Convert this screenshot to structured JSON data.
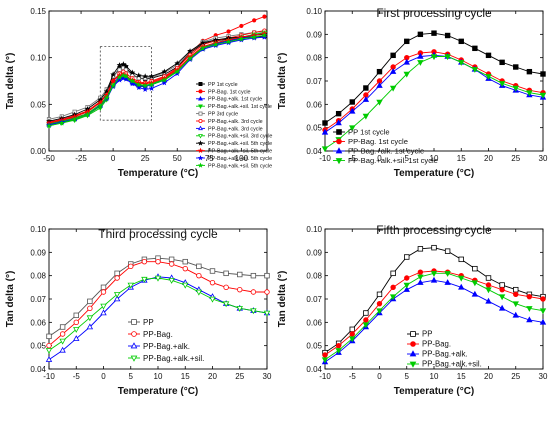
{
  "legend_colors": {
    "PP": "#000000",
    "PP-Bag.": "#ff0000",
    "PP-Bag.+alk.": "#0000ff",
    "PP-Bag.+alk.+sil.": "#00cc00"
  },
  "chart_data": [
    {
      "type": "line",
      "title": "",
      "xlabel": "Temperature (°C)",
      "ylabel": "Tan delta (°)",
      "xlim": [
        -50,
        120
      ],
      "ylim": [
        0.0,
        0.15
      ],
      "xticks": [
        -50,
        -25,
        0,
        25,
        50,
        75,
        100
      ],
      "yticks": [
        0.0,
        0.05,
        0.1,
        0.15
      ],
      "xtick_labels": [
        "-50",
        "-25",
        "0",
        "25",
        "50",
        "75",
        "100"
      ],
      "ytick_labels": [
        "0.00",
        "0.05",
        "0.10",
        "0.15"
      ],
      "legend_placement": "right",
      "annotation": "dashed zoom box from -10 to 30 °C",
      "x": [
        -50,
        -40,
        -30,
        -20,
        -10,
        -5,
        0,
        5,
        8,
        10,
        15,
        20,
        25,
        30,
        40,
        50,
        60,
        70,
        80,
        90,
        100,
        110,
        118
      ],
      "series": [
        {
          "name": "PP 1st cycle",
          "color": "#000000",
          "marker": "square",
          "filled": true,
          "values": [
            0.03,
            0.033,
            0.037,
            0.042,
            0.052,
            0.062,
            0.079,
            0.089,
            0.091,
            0.089,
            0.082,
            0.078,
            0.077,
            0.078,
            0.082,
            0.09,
            0.105,
            0.115,
            0.118,
            0.12,
            0.121,
            0.122,
            0.123
          ]
        },
        {
          "name": "PP-Bag. 1st cycle",
          "color": "#ff0000",
          "marker": "circle",
          "filled": true,
          "values": [
            0.029,
            0.032,
            0.036,
            0.04,
            0.05,
            0.058,
            0.075,
            0.082,
            0.083,
            0.081,
            0.075,
            0.072,
            0.072,
            0.074,
            0.079,
            0.088,
            0.105,
            0.118,
            0.124,
            0.128,
            0.134,
            0.14,
            0.144
          ]
        },
        {
          "name": "PP-Bag.+alk. 1st cycle",
          "color": "#0000ff",
          "marker": "triangle-up",
          "filled": true,
          "values": [
            0.028,
            0.031,
            0.034,
            0.039,
            0.048,
            0.057,
            0.072,
            0.08,
            0.081,
            0.08,
            0.074,
            0.07,
            0.07,
            0.072,
            0.077,
            0.086,
            0.1,
            0.11,
            0.114,
            0.117,
            0.12,
            0.124,
            0.126
          ]
        },
        {
          "name": "PP-Bag.+alk.+sil. 1st cycle",
          "color": "#00cc00",
          "marker": "triangle-down",
          "filled": true,
          "values": [
            0.027,
            0.03,
            0.033,
            0.038,
            0.046,
            0.055,
            0.07,
            0.078,
            0.08,
            0.079,
            0.073,
            0.069,
            0.069,
            0.071,
            0.076,
            0.085,
            0.1,
            0.11,
            0.115,
            0.118,
            0.121,
            0.124,
            0.126
          ]
        },
        {
          "name": "PP 3rd cycle",
          "color": "#777777",
          "marker": "square",
          "filled": false,
          "values": [
            0.034,
            0.037,
            0.042,
            0.047,
            0.057,
            0.066,
            0.08,
            0.087,
            0.089,
            0.087,
            0.081,
            0.078,
            0.078,
            0.079,
            0.084,
            0.092,
            0.106,
            0.117,
            0.121,
            0.123,
            0.125,
            0.127,
            0.128
          ]
        },
        {
          "name": "PP-Bag.+alk. 3rd cycle",
          "color": "#ff0000",
          "marker": "circle",
          "filled": false,
          "values": [
            0.031,
            0.034,
            0.038,
            0.043,
            0.053,
            0.061,
            0.075,
            0.083,
            0.085,
            0.083,
            0.078,
            0.074,
            0.073,
            0.075,
            0.08,
            0.089,
            0.103,
            0.114,
            0.118,
            0.121,
            0.124,
            0.127,
            0.129
          ]
        },
        {
          "name": "PP-Bag.+alk. 3rd cycle",
          "color": "#0000ff",
          "marker": "triangle-up",
          "filled": false,
          "values": [
            0.029,
            0.032,
            0.035,
            0.04,
            0.049,
            0.057,
            0.07,
            0.077,
            0.079,
            0.078,
            0.073,
            0.07,
            0.069,
            0.071,
            0.076,
            0.085,
            0.099,
            0.11,
            0.115,
            0.118,
            0.121,
            0.124,
            0.126
          ]
        },
        {
          "name": "PP-Bag.+alk.+sil. 3rd cycle",
          "color": "#00cc00",
          "marker": "triangle-down",
          "filled": false,
          "values": [
            0.029,
            0.032,
            0.035,
            0.04,
            0.05,
            0.058,
            0.071,
            0.078,
            0.08,
            0.078,
            0.074,
            0.071,
            0.07,
            0.072,
            0.077,
            0.086,
            0.1,
            0.111,
            0.116,
            0.119,
            0.122,
            0.125,
            0.127
          ]
        },
        {
          "name": "PP-Bag.+alk.+sil. 5th cycle",
          "color": "#000000",
          "marker": "star",
          "filled": true,
          "values": [
            0.032,
            0.035,
            0.039,
            0.045,
            0.055,
            0.064,
            0.082,
            0.092,
            0.093,
            0.091,
            0.084,
            0.081,
            0.08,
            0.08,
            0.085,
            0.094,
            0.107,
            0.116,
            0.119,
            0.121,
            0.122,
            0.124,
            0.125
          ]
        },
        {
          "name": "PP-Bag.+alk.+sil. 5th cycle",
          "color": "#ff0000",
          "marker": "star",
          "filled": true,
          "values": [
            0.03,
            0.033,
            0.037,
            0.042,
            0.052,
            0.06,
            0.075,
            0.081,
            0.082,
            0.081,
            0.076,
            0.073,
            0.072,
            0.073,
            0.078,
            0.087,
            0.101,
            0.112,
            0.116,
            0.119,
            0.122,
            0.124,
            0.126
          ]
        },
        {
          "name": "PP-Bag.+alk.+sil. 5th cycle",
          "color": "#0000ff",
          "marker": "star",
          "filled": true,
          "values": [
            0.028,
            0.031,
            0.034,
            0.039,
            0.048,
            0.056,
            0.069,
            0.076,
            0.078,
            0.077,
            0.072,
            0.068,
            0.066,
            0.067,
            0.073,
            0.083,
            0.098,
            0.109,
            0.113,
            0.116,
            0.119,
            0.121,
            0.122
          ]
        },
        {
          "name": "PP-Bag.+alk.+sil. 5th cycle",
          "color": "#00cc00",
          "marker": "star",
          "filled": true,
          "values": [
            0.027,
            0.03,
            0.034,
            0.039,
            0.048,
            0.057,
            0.07,
            0.079,
            0.081,
            0.08,
            0.075,
            0.071,
            0.07,
            0.071,
            0.076,
            0.085,
            0.099,
            0.11,
            0.114,
            0.117,
            0.12,
            0.122,
            0.124
          ]
        }
      ]
    },
    {
      "type": "line",
      "title": "First processing cycle",
      "xlabel": "Temperature (°C)",
      "ylabel": "Tan delta (°)",
      "xlim": [
        -10,
        30
      ],
      "ylim": [
        0.04,
        0.1
      ],
      "xticks": [
        -10,
        -5,
        0,
        5,
        10,
        15,
        20,
        25,
        30
      ],
      "yticks": [
        0.04,
        0.05,
        0.06,
        0.07,
        0.08,
        0.09,
        0.1
      ],
      "xtick_labels": [
        "-10",
        "-5",
        "0",
        "5",
        "10",
        "15",
        "20",
        "25",
        "30"
      ],
      "ytick_labels": [
        "0.04",
        "0.05",
        "0.06",
        "0.07",
        "0.08",
        "0.09",
        "0.10"
      ],
      "legend_placement": "bottom-left",
      "x": [
        -10,
        -7.5,
        -5,
        -2.5,
        0,
        2.5,
        5,
        7.5,
        10,
        12.5,
        15,
        17.5,
        20,
        22.5,
        25,
        27.5,
        30
      ],
      "series": [
        {
          "name": "PP 1st cycle",
          "color": "#000000",
          "marker": "square",
          "filled": true,
          "values": [
            0.052,
            0.056,
            0.061,
            0.067,
            0.074,
            0.081,
            0.087,
            0.09,
            0.0905,
            0.0895,
            0.087,
            0.084,
            0.081,
            0.078,
            0.076,
            0.074,
            0.073
          ]
        },
        {
          "name": "PP-Bag. 1st cycle",
          "color": "#ff0000",
          "marker": "circle",
          "filled": true,
          "values": [
            0.049,
            0.053,
            0.058,
            0.064,
            0.07,
            0.076,
            0.08,
            0.082,
            0.0825,
            0.0815,
            0.079,
            0.076,
            0.073,
            0.07,
            0.068,
            0.066,
            0.065
          ]
        },
        {
          "name": "PP-Bag.+alk. 1st cycle",
          "color": "#0000ff",
          "marker": "triangle-up",
          "filled": true,
          "values": [
            0.048,
            0.052,
            0.057,
            0.062,
            0.068,
            0.074,
            0.078,
            0.0805,
            0.081,
            0.0805,
            0.078,
            0.075,
            0.071,
            0.068,
            0.066,
            0.064,
            0.063
          ]
        },
        {
          "name": "PP-Bag.+alk.+sil. 1st cycle",
          "color": "#00cc00",
          "marker": "triangle-down",
          "filled": true,
          "values": [
            0.041,
            0.045,
            0.05,
            0.055,
            0.061,
            0.067,
            0.073,
            0.078,
            0.0805,
            0.0805,
            0.078,
            0.075,
            0.072,
            0.069,
            0.067,
            0.065,
            0.064
          ]
        }
      ]
    },
    {
      "type": "line",
      "title": "Third processing cycle",
      "xlabel": "Temperature (°C)",
      "ylabel": "Tan delta (°)",
      "xlim": [
        -10,
        30
      ],
      "ylim": [
        0.04,
        0.1
      ],
      "xticks": [
        -10,
        -5,
        0,
        5,
        10,
        15,
        20,
        25,
        30
      ],
      "yticks": [
        0.04,
        0.05,
        0.06,
        0.07,
        0.08,
        0.09,
        0.1
      ],
      "xtick_labels": [
        "-10",
        "-5",
        "0",
        "5",
        "10",
        "15",
        "20",
        "25",
        "30"
      ],
      "ytick_labels": [
        "0.04",
        "0.05",
        "0.06",
        "0.07",
        "0.08",
        "0.09",
        "0.10"
      ],
      "legend_placement": "bottom-right",
      "x": [
        -10,
        -7.5,
        -5,
        -2.5,
        0,
        2.5,
        5,
        7.5,
        10,
        12.5,
        15,
        17.5,
        20,
        22.5,
        25,
        27.5,
        30
      ],
      "series": [
        {
          "name": "PP",
          "color": "#555555",
          "marker": "square",
          "filled": false,
          "values": [
            0.054,
            0.058,
            0.063,
            0.069,
            0.075,
            0.081,
            0.085,
            0.087,
            0.0875,
            0.087,
            0.086,
            0.084,
            0.082,
            0.081,
            0.0805,
            0.08,
            0.08
          ]
        },
        {
          "name": "PP-Bag.",
          "color": "#ff0000",
          "marker": "circle",
          "filled": false,
          "values": [
            0.05,
            0.055,
            0.06,
            0.066,
            0.073,
            0.079,
            0.084,
            0.086,
            0.086,
            0.085,
            0.083,
            0.08,
            0.077,
            0.075,
            0.074,
            0.073,
            0.073
          ]
        },
        {
          "name": "PP-Bag.+alk.",
          "color": "#0000ff",
          "marker": "triangle-up",
          "filled": false,
          "values": [
            0.044,
            0.048,
            0.053,
            0.058,
            0.064,
            0.07,
            0.075,
            0.078,
            0.0795,
            0.079,
            0.077,
            0.074,
            0.071,
            0.068,
            0.066,
            0.065,
            0.064
          ]
        },
        {
          "name": "PP-Bag.+alk.+sil.",
          "color": "#00cc00",
          "marker": "triangle-down",
          "filled": false,
          "values": [
            0.048,
            0.052,
            0.057,
            0.062,
            0.067,
            0.072,
            0.076,
            0.0785,
            0.079,
            0.078,
            0.076,
            0.073,
            0.07,
            0.068,
            0.066,
            0.065,
            0.064
          ]
        }
      ]
    },
    {
      "type": "line",
      "title": "Fifth processing cycle",
      "xlabel": "Temperature (°C)",
      "ylabel": "Tan delta (°)",
      "xlim": [
        -10,
        30
      ],
      "ylim": [
        0.04,
        0.1
      ],
      "xticks": [
        -10,
        -5,
        0,
        5,
        10,
        15,
        20,
        25,
        30
      ],
      "yticks": [
        0.04,
        0.05,
        0.06,
        0.07,
        0.08,
        0.09,
        0.1
      ],
      "xtick_labels": [
        "-10",
        "-5",
        "0",
        "5",
        "10",
        "15",
        "20",
        "25",
        "30"
      ],
      "ytick_labels": [
        "0.04",
        "0.05",
        "0.06",
        "0.07",
        "0.08",
        "0.09",
        "0.10"
      ],
      "legend_placement": "bottom-right",
      "x": [
        -10,
        -7.5,
        -5,
        -2.5,
        0,
        2.5,
        5,
        7.5,
        10,
        12.5,
        15,
        17.5,
        20,
        22.5,
        25,
        27.5,
        30
      ],
      "series": [
        {
          "name": "PP",
          "color": "#000000",
          "marker": "square",
          "filled": false,
          "values": [
            0.047,
            0.051,
            0.057,
            0.064,
            0.072,
            0.081,
            0.088,
            0.0915,
            0.092,
            0.0905,
            0.087,
            0.083,
            0.079,
            0.076,
            0.074,
            0.072,
            0.071
          ]
        },
        {
          "name": "PP-Bag.",
          "color": "#ff0000",
          "marker": "circle",
          "filled": true,
          "values": [
            0.046,
            0.05,
            0.055,
            0.061,
            0.068,
            0.075,
            0.079,
            0.0815,
            0.082,
            0.0815,
            0.08,
            0.078,
            0.076,
            0.074,
            0.072,
            0.071,
            0.07
          ]
        },
        {
          "name": "PP-Bag.+alk.",
          "color": "#0000ff",
          "marker": "triangle-up",
          "filled": true,
          "values": [
            0.043,
            0.047,
            0.052,
            0.058,
            0.064,
            0.07,
            0.074,
            0.077,
            0.078,
            0.077,
            0.075,
            0.072,
            0.069,
            0.066,
            0.063,
            0.061,
            0.06
          ]
        },
        {
          "name": "PP-Bag.+alk.+sil.",
          "color": "#00cc00",
          "marker": "triangle-down",
          "filled": true,
          "values": [
            0.044,
            0.048,
            0.053,
            0.059,
            0.065,
            0.071,
            0.076,
            0.0795,
            0.081,
            0.081,
            0.079,
            0.077,
            0.074,
            0.071,
            0.068,
            0.066,
            0.065
          ]
        }
      ]
    }
  ]
}
